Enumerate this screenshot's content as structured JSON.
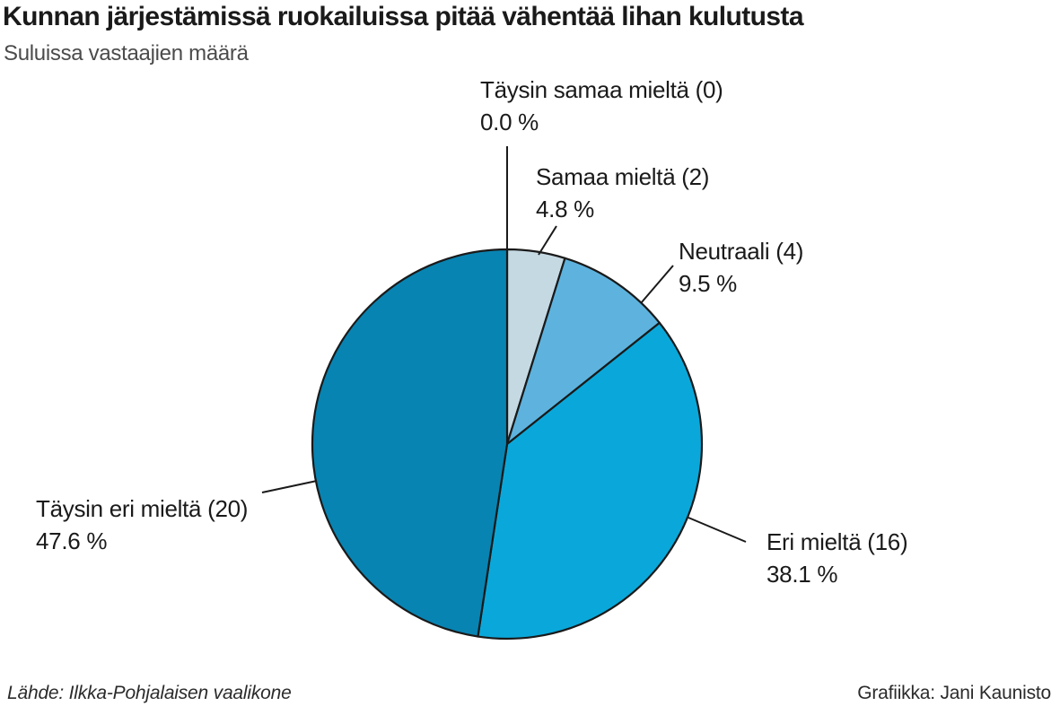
{
  "chart_data": {
    "type": "pie",
    "title": "Kunnan järjestämissä ruokailuissa pitää vähentää lihan kulutusta",
    "subtitle": "Suluissa vastaajien määrä",
    "start_angle_deg": 0,
    "direction": "clockwise",
    "outline_color": "#1a1a1a",
    "slices": [
      {
        "label": "Täysin samaa mieltä (0)",
        "category": "Täysin samaa mieltä",
        "respondents": 0,
        "percent": 0.0,
        "percent_label": "0.0 %",
        "color": "#dfe9ef"
      },
      {
        "label": "Samaa mieltä (2)",
        "category": "Samaa mieltä",
        "respondents": 2,
        "percent": 4.8,
        "percent_label": "4.8 %",
        "color": "#c5d9e3"
      },
      {
        "label": "Neutraali (4)",
        "category": "Neutraali",
        "respondents": 4,
        "percent": 9.5,
        "percent_label": "9.5 %",
        "color": "#5db3de"
      },
      {
        "label": "Eri mieltä (16)",
        "category": "Eri mieltä",
        "respondents": 16,
        "percent": 38.1,
        "percent_label": "38.1 %",
        "color": "#0aa8da"
      },
      {
        "label": "Täysin eri mieltä (20)",
        "category": "Täysin eri mieltä",
        "respondents": 20,
        "percent": 47.6,
        "percent_label": "47.6 %",
        "color": "#0884b2"
      }
    ]
  },
  "footer": {
    "source": "Lähde: Ilkka-Pohjalaisen vaalikone",
    "credit": "Grafiikka: Jani Kaunisto"
  }
}
